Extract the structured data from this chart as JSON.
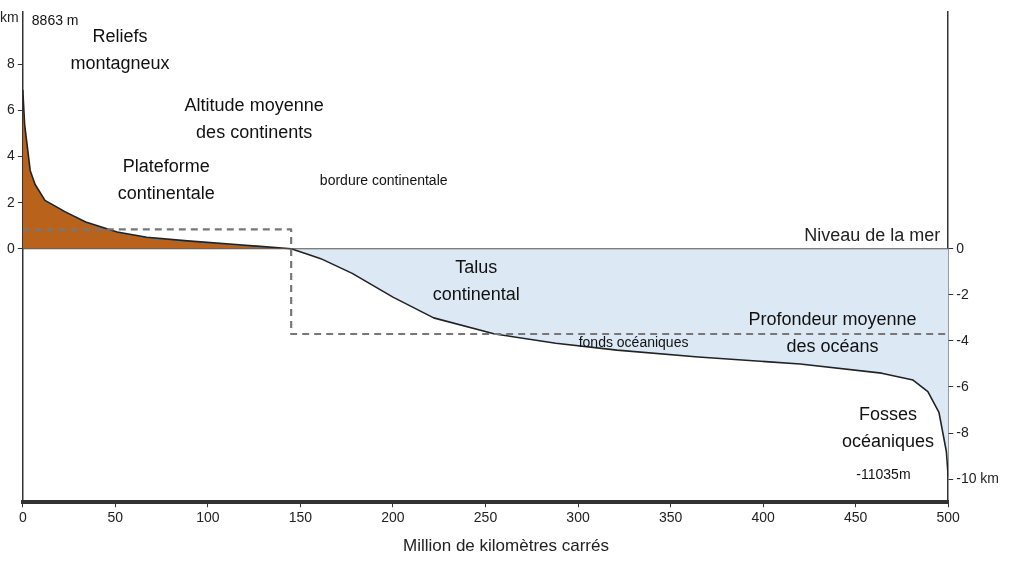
{
  "chart_data": {
    "type": "area",
    "xlabel": "Million de kilomètres carrés",
    "ylabel": "km",
    "xlim": [
      0,
      500
    ],
    "xticks": [
      0,
      50,
      100,
      150,
      200,
      250,
      300,
      350,
      400,
      450,
      500
    ],
    "ylim": [
      -11,
      10.3
    ],
    "yticks": [
      0,
      2,
      4,
      6,
      8
    ],
    "y2lim": [
      -11,
      10.3
    ],
    "y2ticks": [
      0,
      -2,
      -4,
      -6,
      -8,
      {
        "value": -10,
        "label": "-10 km"
      }
    ],
    "grid": false,
    "legend": false,
    "series": [
      {
        "color": "#b8621b",
        "x": [
          0,
          1,
          4,
          6.6,
          12,
          23,
          34,
          51,
          67,
          89,
          117,
          145
        ],
        "values": [
          6.9,
          5.4,
          3.4,
          2.8,
          2.1,
          1.6,
          1.16,
          0.73,
          0.5,
          0.34,
          0.17,
          0
        ]
      },
      {
        "color": "#dce9f5",
        "x": [
          145,
          161,
          178,
          200,
          222,
          255,
          288,
          321,
          365,
          420,
          464,
          481,
          489,
          495,
          499,
          500
        ],
        "values": [
          0,
          -0.43,
          -1.07,
          -2.1,
          -3.0,
          -3.7,
          -4.1,
          -4.4,
          -4.7,
          -5.0,
          -5.4,
          -5.7,
          -6.2,
          -7.1,
          -8.8,
          -9.9
        ]
      },
      {
        "type": "line",
        "color": "#777777",
        "line_style": "dashed",
        "x": [
          0,
          145,
          145,
          500
        ],
        "values": [
          0.84,
          0.84,
          -3.7,
          -3.7
        ]
      }
    ],
    "ref_lines": [
      {
        "axis": "y",
        "value": 0,
        "label": "Niveau de la mer",
        "color": "#555555"
      }
    ],
    "annotations": [
      "8863 m",
      "Reliefs\nmontagneux",
      "Altitude moyenne\ndes continents",
      "Plateforme\ncontinentale",
      "bordure continentale",
      "Talus\ncontinental",
      "fonds océaniques",
      "Profondeur moyenne\ndes océans",
      "Fosses\nocéaniques",
      "-11035m"
    ]
  }
}
